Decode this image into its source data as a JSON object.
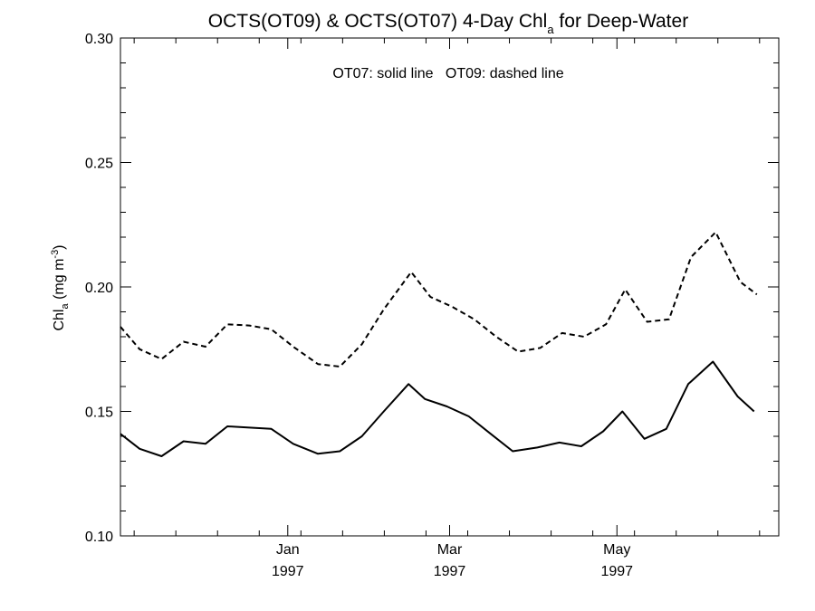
{
  "chart_data": {
    "type": "line",
    "title_main": "OCTS(OT09) & OCTS(OT07) 4-Day Chl",
    "title_sub": "a",
    "title_tail": " for Deep-Water",
    "ylabel_main": "Chl",
    "ylabel_sub": "a",
    "ylabel_unit": " (mg m",
    "ylabel_exp": "-3",
    "ylabel_close": ")",
    "annotation": "OT07: solid line   OT09: dashed line",
    "ylim": [
      0.1,
      0.3
    ],
    "yticks": [
      "0.10",
      "0.15",
      "0.20",
      "0.25",
      "0.30"
    ],
    "ytick_values": [
      0.1,
      0.15,
      0.2,
      0.25,
      0.3
    ],
    "xlim": [
      "1996-11-01",
      "1997-06-29"
    ],
    "xticks": [
      {
        "date": "1997-01-01",
        "month": "Jan",
        "year": "1997"
      },
      {
        "date": "1997-03-01",
        "month": "Mar",
        "year": "1997"
      },
      {
        "date": "1997-05-01",
        "month": "May",
        "year": "1997"
      }
    ],
    "series": [
      {
        "name": "OT07",
        "style": "solid",
        "points": [
          [
            "1996-11-01",
            0.141
          ],
          [
            "1996-11-08",
            0.135
          ],
          [
            "1996-11-16",
            0.132
          ],
          [
            "1996-11-24",
            0.138
          ],
          [
            "1996-12-02",
            0.137
          ],
          [
            "1996-12-10",
            0.144
          ],
          [
            "1996-12-18",
            0.1435
          ],
          [
            "1996-12-26",
            0.143
          ],
          [
            "1997-01-03",
            0.137
          ],
          [
            "1997-01-12",
            0.133
          ],
          [
            "1997-01-20",
            0.134
          ],
          [
            "1997-01-28",
            0.14
          ],
          [
            "1997-02-05",
            0.15
          ],
          [
            "1997-02-14",
            0.161
          ],
          [
            "1997-02-20",
            0.155
          ],
          [
            "1997-02-28",
            0.152
          ],
          [
            "1997-03-08",
            0.148
          ],
          [
            "1997-03-16",
            0.141
          ],
          [
            "1997-03-24",
            0.134
          ],
          [
            "1997-04-02",
            0.1355
          ],
          [
            "1997-04-10",
            0.1375
          ],
          [
            "1997-04-18",
            0.136
          ],
          [
            "1997-04-26",
            0.142
          ],
          [
            "1997-05-03",
            0.15
          ],
          [
            "1997-05-11",
            0.139
          ],
          [
            "1997-05-19",
            0.143
          ],
          [
            "1997-05-27",
            0.161
          ],
          [
            "1997-06-05",
            0.17
          ],
          [
            "1997-06-14",
            0.156
          ],
          [
            "1997-06-20",
            0.15
          ]
        ]
      },
      {
        "name": "OT09",
        "style": "dashed",
        "points": [
          [
            "1996-11-01",
            0.184
          ],
          [
            "1996-11-08",
            0.175
          ],
          [
            "1996-11-16",
            0.171
          ],
          [
            "1996-11-24",
            0.178
          ],
          [
            "1996-12-02",
            0.176
          ],
          [
            "1996-12-10",
            0.185
          ],
          [
            "1996-12-18",
            0.1845
          ],
          [
            "1996-12-26",
            0.183
          ],
          [
            "1997-01-03",
            0.176
          ],
          [
            "1997-01-12",
            0.169
          ],
          [
            "1997-01-20",
            0.168
          ],
          [
            "1997-01-28",
            0.177
          ],
          [
            "1997-02-05",
            0.191
          ],
          [
            "1997-02-15",
            0.206
          ],
          [
            "1997-02-22",
            0.196
          ],
          [
            "1997-03-02",
            0.192
          ],
          [
            "1997-03-10",
            0.187
          ],
          [
            "1997-03-18",
            0.18
          ],
          [
            "1997-03-26",
            0.174
          ],
          [
            "1997-04-03",
            0.1755
          ],
          [
            "1997-04-11",
            0.1815
          ],
          [
            "1997-04-19",
            0.18
          ],
          [
            "1997-04-27",
            0.185
          ],
          [
            "1997-05-04",
            0.199
          ],
          [
            "1997-05-12",
            0.186
          ],
          [
            "1997-05-20",
            0.187
          ],
          [
            "1997-05-28",
            0.212
          ],
          [
            "1997-06-06",
            0.222
          ],
          [
            "1997-06-15",
            0.202
          ],
          [
            "1997-06-21",
            0.197
          ]
        ]
      }
    ]
  }
}
